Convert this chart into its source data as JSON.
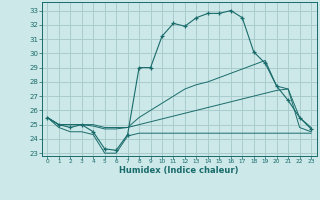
{
  "xlabel": "Humidex (Indice chaleur)",
  "bg_color": "#cce8e8",
  "grid_color": "#aacccc",
  "line_color": "#1a6b6b",
  "xlim": [
    -0.5,
    23.5
  ],
  "ylim": [
    22.8,
    33.6
  ],
  "yticks": [
    23,
    24,
    25,
    26,
    27,
    28,
    29,
    30,
    31,
    32,
    33
  ],
  "xticks": [
    0,
    1,
    2,
    3,
    4,
    5,
    6,
    7,
    8,
    9,
    10,
    11,
    12,
    13,
    14,
    15,
    16,
    17,
    18,
    19,
    20,
    21,
    22,
    23
  ],
  "main_line": [
    25.5,
    25.0,
    24.8,
    25.0,
    24.5,
    23.3,
    23.2,
    24.3,
    29.0,
    29.0,
    31.2,
    32.1,
    31.9,
    32.5,
    32.8,
    32.8,
    33.0,
    32.5,
    30.1,
    29.3,
    27.7,
    26.7,
    25.5,
    24.7
  ],
  "min_line": [
    25.5,
    24.8,
    24.5,
    24.5,
    24.3,
    23.0,
    23.0,
    24.2,
    24.4,
    24.4,
    24.4,
    24.4,
    24.4,
    24.4,
    24.4,
    24.4,
    24.4,
    24.4,
    24.4,
    24.4,
    24.4,
    24.4,
    24.4,
    24.4
  ],
  "avg_line": [
    25.5,
    25.0,
    25.0,
    25.0,
    24.9,
    24.7,
    24.7,
    24.8,
    25.0,
    25.2,
    25.4,
    25.6,
    25.8,
    26.0,
    26.2,
    26.4,
    26.6,
    26.8,
    27.0,
    27.2,
    27.4,
    27.5,
    24.8,
    24.5
  ],
  "max_line": [
    25.5,
    25.0,
    25.0,
    25.0,
    25.0,
    24.8,
    24.8,
    24.8,
    25.5,
    26.0,
    26.5,
    27.0,
    27.5,
    27.8,
    28.0,
    28.3,
    28.6,
    28.9,
    29.2,
    29.5,
    27.7,
    27.5,
    25.5,
    24.8
  ]
}
